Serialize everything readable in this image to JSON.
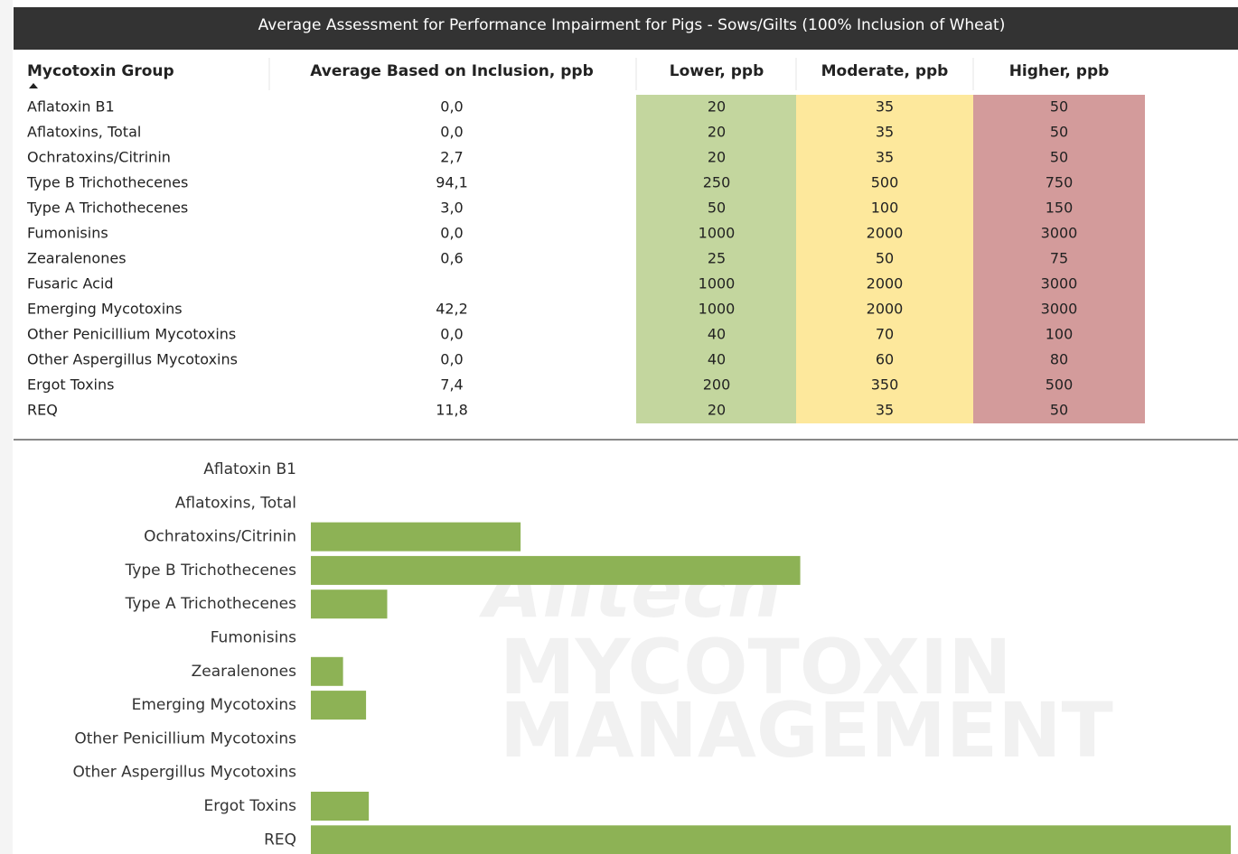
{
  "header": {
    "title": "Average Assessment for Performance Impairment for Pigs - Sows/Gilts (100% Inclusion of Wheat)"
  },
  "table": {
    "columns": [
      "Mycotoxin Group",
      "Average Based on Inclusion, ppb",
      "Lower, ppb",
      "Moderate, ppb",
      "Higher, ppb"
    ],
    "rows": [
      [
        "Aflatoxin B1",
        "0,0",
        20,
        35,
        50
      ],
      [
        "Aflatoxins, Total",
        "0,0",
        20,
        35,
        50
      ],
      [
        "Ochratoxins/Citrinin",
        "2,7",
        20,
        35,
        50
      ],
      [
        "Type B Trichothecenes",
        "94,1",
        250,
        500,
        750
      ],
      [
        "Type A Trichothecenes",
        "3,0",
        50,
        100,
        150
      ],
      [
        "Fumonisins",
        "0,0",
        1000,
        2000,
        3000
      ],
      [
        "Zearalenones",
        "0,6",
        25,
        50,
        75
      ],
      [
        "Fusaric Acid",
        null,
        1000,
        2000,
        3000
      ],
      [
        "Emerging Mycotoxins",
        "42,2",
        1000,
        2000,
        3000
      ],
      [
        "Other Penicillium Mycotoxins",
        "0,0",
        40,
        70,
        100
      ],
      [
        "Other Aspergillus Mycotoxins",
        "0,0",
        40,
        60,
        80
      ],
      [
        "Ergot Toxins",
        "7,4",
        200,
        350,
        500
      ],
      [
        "REQ",
        "11,8",
        20,
        35,
        50
      ]
    ]
  },
  "chart_data": {
    "type": "bar",
    "orientation": "horizontal",
    "categories": [
      "Aflatoxin B1",
      "Aflatoxins, Total",
      "Ochratoxins/Citrinin",
      "Type B Trichothecenes",
      "Type A Trichothecenes",
      "Fumonisins",
      "Zearalenones",
      "Emerging Mycotoxins",
      "Other Penicillium Mycotoxins",
      "Other Aspergillus Mycotoxins",
      "Ergot Toxins",
      "REQ"
    ],
    "values": [
      0,
      0,
      22.8,
      53.2,
      8.3,
      0,
      3.5,
      6.0,
      0,
      0,
      6.3,
      100
    ],
    "color": "#8db255",
    "xlim": [
      0,
      100
    ]
  },
  "watermark": {
    "brand": "Alltech",
    "lines": [
      "MYCOTOXIN",
      "MANAGEMENT"
    ]
  }
}
